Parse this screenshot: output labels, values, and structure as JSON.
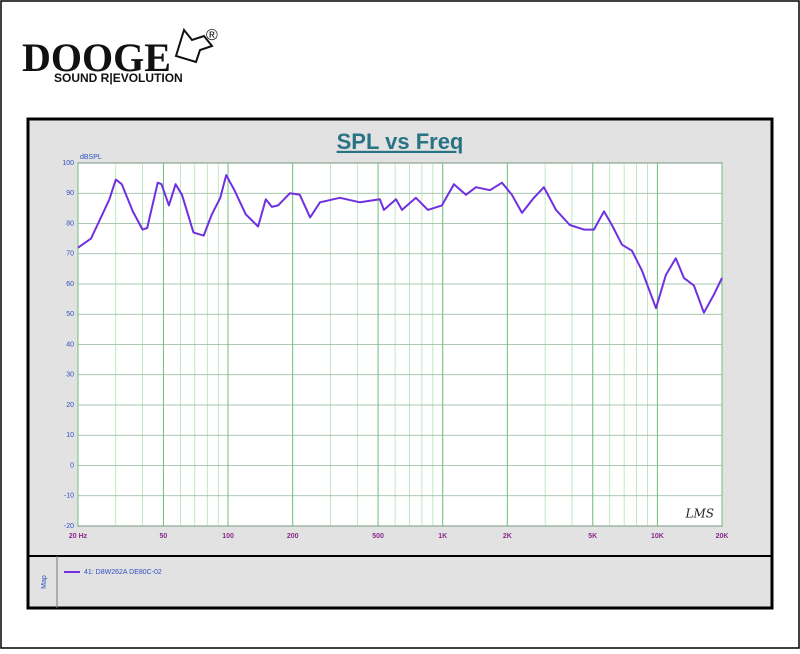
{
  "logo": {
    "brand": "DOOGE",
    "tagline": "SOUND R|EVOLUTION",
    "mark": "®"
  },
  "chart_data": {
    "type": "line",
    "title": "SPL vs Freq",
    "y_label": "dBSPL",
    "watermark": "LMS",
    "legend_title": "Map",
    "log_x": true,
    "grid": true,
    "minor_grid": true,
    "x": [
      20,
      23,
      25,
      28,
      30,
      32,
      36,
      40,
      42,
      47,
      49,
      53,
      57,
      61,
      69,
      77,
      84,
      92,
      98,
      107,
      121,
      138,
      150,
      160,
      171,
      194,
      216,
      241,
      268,
      332,
      412,
      510,
      532,
      606,
      646,
      750,
      853,
      991,
      1128,
      1283,
      1429,
      1660,
      1888,
      2100,
      2340,
      2660,
      2960,
      3370,
      3910,
      4550,
      5060,
      5640,
      6140,
      6840,
      7610,
      8470,
      9850,
      10960,
      12190,
      13290,
      14790,
      16470,
      18330,
      20000
    ],
    "series": [
      {
        "name": "41: D8W262A  DE80C-02",
        "color": "#7030e0",
        "values": [
          72,
          75,
          80.5,
          88,
          94.5,
          93,
          84,
          78,
          78.5,
          93.5,
          93,
          86,
          93,
          89.5,
          77,
          76,
          83,
          88.5,
          96,
          91,
          83,
          79,
          88,
          85.5,
          86,
          90,
          89.5,
          82,
          87,
          88.5,
          87,
          88,
          84.5,
          88,
          84.5,
          88.5,
          84.5,
          86,
          93,
          89.5,
          92,
          91,
          93.5,
          89.5,
          83.5,
          88.5,
          92,
          84.5,
          79.5,
          78,
          78,
          84,
          79.5,
          73,
          71,
          64.5,
          52,
          63,
          68.5,
          62,
          59.5,
          50.5,
          56.5,
          62
        ]
      }
    ],
    "xlim": [
      20,
      20000
    ],
    "ylim": [
      -20,
      100
    ],
    "xticks": [
      {
        "value": 20,
        "label": "20 Hz"
      },
      50,
      100,
      200,
      500,
      {
        "value": 1000,
        "label": "1K"
      },
      {
        "value": 2000,
        "label": "2K"
      },
      {
        "value": 5000,
        "label": "5K"
      },
      {
        "value": 10000,
        "label": "10K"
      },
      {
        "value": 20000,
        "label": "20K"
      }
    ],
    "yticks": [
      100,
      90,
      80,
      70,
      60,
      50,
      40,
      30,
      20,
      10,
      0,
      -10,
      -20
    ]
  }
}
